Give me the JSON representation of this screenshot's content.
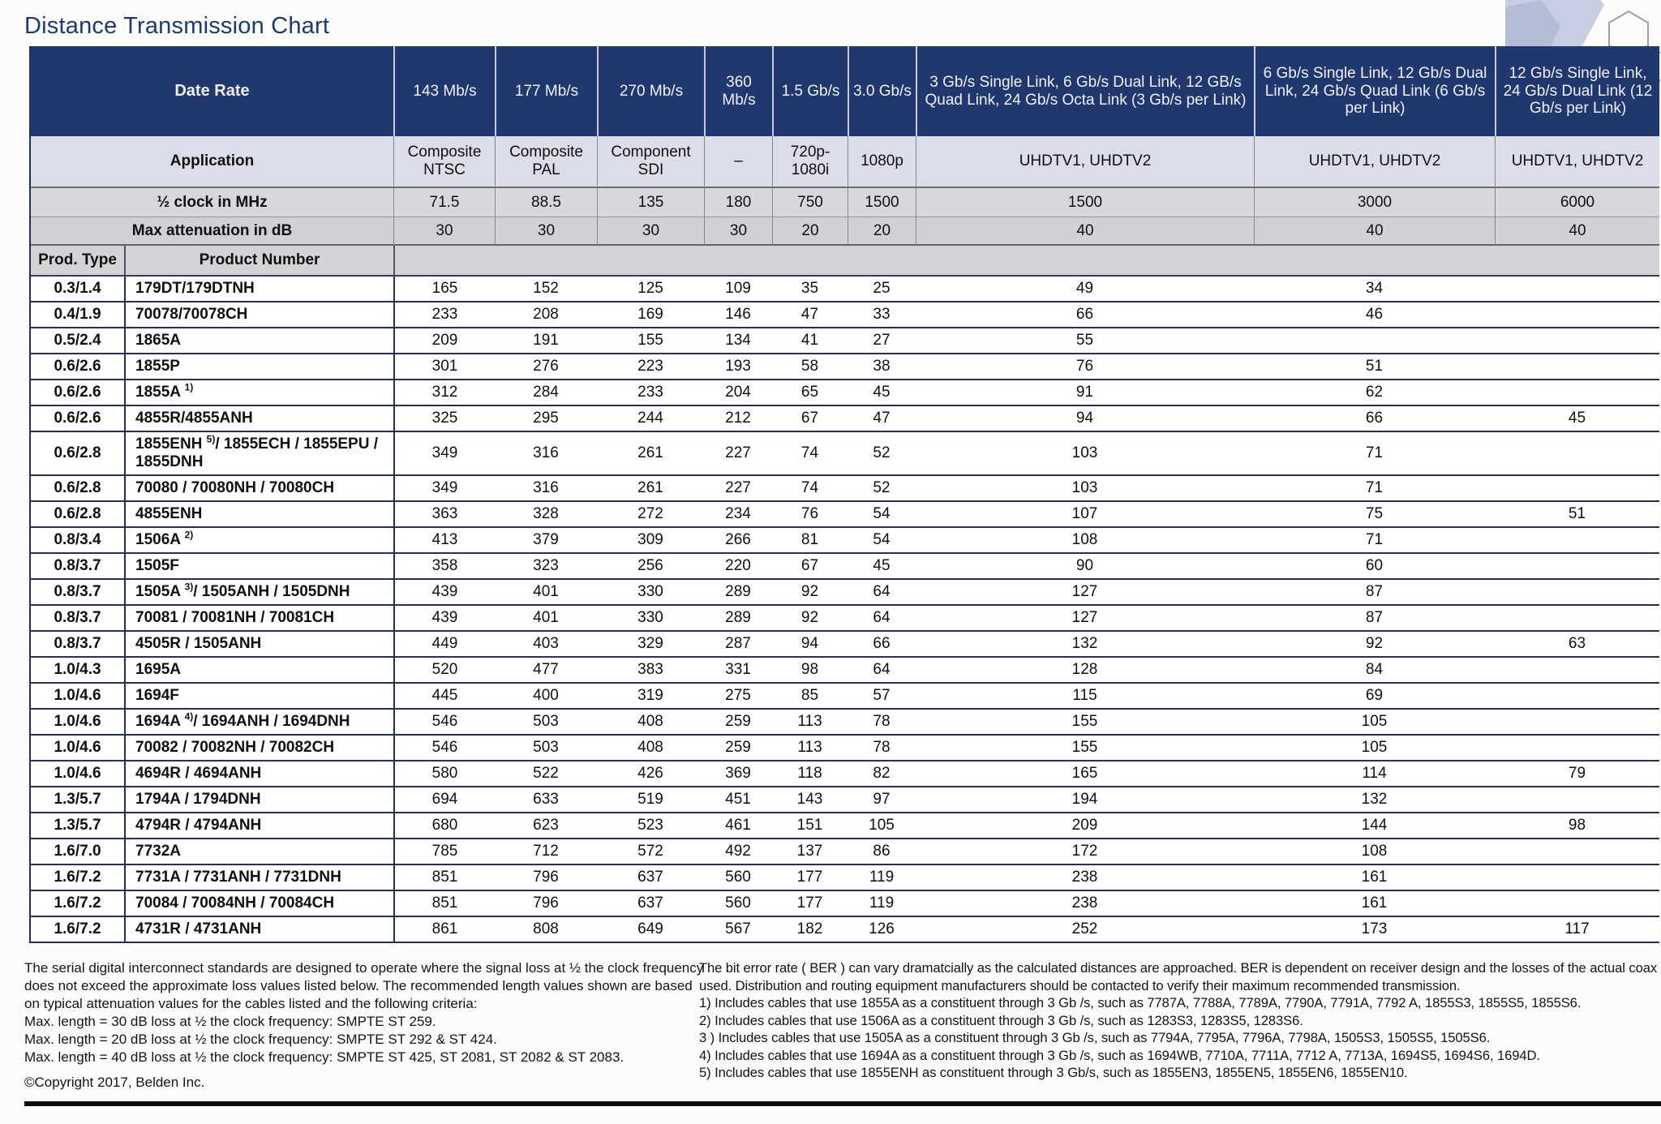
{
  "title": "Distance Transmission Chart",
  "colors": {
    "header_navy": "#21386e",
    "row_line_navy": "#1d3264",
    "application_row": "#dbdee9",
    "metric_row": "#d7d8dc"
  },
  "table": {
    "date_rate_label": "Date Rate",
    "application_label": "Application",
    "clock_label": "½ clock in MHz",
    "attenuation_label": "Max attenuation in dB",
    "prod_type_label": "Prod. Type",
    "product_number_label": "Product Number",
    "rate_columns": [
      "143 Mb/s",
      "177 Mb/s",
      "270 Mb/s",
      "360 Mb/s",
      "1.5 Gb/s",
      "3.0 Gb/s",
      "3 Gb/s Single Link, 6 Gb/s Dual Link, 12 GB/s Quad Link, 24 Gb/s Octa Link (3 Gb/s per Link)",
      "6 Gb/s Single Link, 12 Gb/s Dual Link, 24 Gb/s Quad Link (6 Gb/s per Link)",
      "12 Gb/s Single Link, 24 Gb/s Dual Link (12 Gb/s per Link)"
    ],
    "applications": [
      "Composite NTSC",
      "Composite PAL",
      "Component SDI",
      "–",
      "720p- 1080i",
      "1080p",
      "UHDTV1, UHDTV2",
      "UHDTV1, UHDTV2",
      "UHDTV1, UHDTV2"
    ],
    "clock_mhz": [
      "71.5",
      "88.5",
      "135",
      "180",
      "750",
      "1500",
      "1500",
      "3000",
      "6000"
    ],
    "max_attenuation_db": [
      "30",
      "30",
      "30",
      "30",
      "20",
      "20",
      "40",
      "40",
      "40"
    ],
    "rows": [
      {
        "prod_type": "0.3/1.4",
        "product": {
          "pre": "179DT/179DTNH",
          "sup": "",
          "post": ""
        },
        "values": [
          "165",
          "152",
          "125",
          "109",
          "35",
          "25",
          "49",
          "34",
          ""
        ]
      },
      {
        "prod_type": "0.4/1.9",
        "product": {
          "pre": "70078/70078CH",
          "sup": "",
          "post": ""
        },
        "values": [
          "233",
          "208",
          "169",
          "146",
          "47",
          "33",
          "66",
          "46",
          ""
        ]
      },
      {
        "prod_type": "0.5/2.4",
        "product": {
          "pre": "1865A",
          "sup": "",
          "post": ""
        },
        "values": [
          "209",
          "191",
          "155",
          "134",
          "41",
          "27",
          "55",
          "",
          ""
        ]
      },
      {
        "prod_type": "0.6/2.6",
        "product": {
          "pre": "1855P",
          "sup": "",
          "post": ""
        },
        "values": [
          "301",
          "276",
          "223",
          "193",
          "58",
          "38",
          "76",
          "51",
          ""
        ]
      },
      {
        "prod_type": "0.6/2.6",
        "product": {
          "pre": "1855A ",
          "sup": "1)",
          "post": ""
        },
        "values": [
          "312",
          "284",
          "233",
          "204",
          "65",
          "45",
          "91",
          "62",
          ""
        ]
      },
      {
        "prod_type": "0.6/2.6",
        "product": {
          "pre": "4855R/4855ANH",
          "sup": "",
          "post": ""
        },
        "values": [
          "325",
          "295",
          "244",
          "212",
          "67",
          "47",
          "94",
          "66",
          "45"
        ]
      },
      {
        "prod_type": "0.6/2.8",
        "product": {
          "pre": "1855ENH ",
          "sup": "5)",
          "post": "/ 1855ECH / 1855EPU / 1855DNH"
        },
        "values": [
          "349",
          "316",
          "261",
          "227",
          "74",
          "52",
          "103",
          "71",
          ""
        ]
      },
      {
        "prod_type": "0.6/2.8",
        "product": {
          "pre": "70080 / 70080NH / 70080CH",
          "sup": "",
          "post": ""
        },
        "values": [
          "349",
          "316",
          "261",
          "227",
          "74",
          "52",
          "103",
          "71",
          ""
        ]
      },
      {
        "prod_type": "0.6/2.8",
        "product": {
          "pre": "4855ENH",
          "sup": "",
          "post": ""
        },
        "values": [
          "363",
          "328",
          "272",
          "234",
          "76",
          "54",
          "107",
          "75",
          "51"
        ]
      },
      {
        "prod_type": "0.8/3.4",
        "product": {
          "pre": "1506A ",
          "sup": "2)",
          "post": ""
        },
        "values": [
          "413",
          "379",
          "309",
          "266",
          "81",
          "54",
          "108",
          "71",
          ""
        ]
      },
      {
        "prod_type": "0.8/3.7",
        "product": {
          "pre": "1505F",
          "sup": "",
          "post": ""
        },
        "values": [
          "358",
          "323",
          "256",
          "220",
          "67",
          "45",
          "90",
          "60",
          ""
        ]
      },
      {
        "prod_type": "0.8/3.7",
        "product": {
          "pre": "1505A ",
          "sup": "3)",
          "post": "/ 1505ANH / 1505DNH"
        },
        "values": [
          "439",
          "401",
          "330",
          "289",
          "92",
          "64",
          "127",
          "87",
          ""
        ]
      },
      {
        "prod_type": "0.8/3.7",
        "product": {
          "pre": "70081 / 70081NH / 70081CH",
          "sup": "",
          "post": ""
        },
        "values": [
          "439",
          "401",
          "330",
          "289",
          "92",
          "64",
          "127",
          "87",
          ""
        ]
      },
      {
        "prod_type": "0.8/3.7",
        "product": {
          "pre": "4505R / 1505ANH",
          "sup": "",
          "post": ""
        },
        "values": [
          "449",
          "403",
          "329",
          "287",
          "94",
          "66",
          "132",
          "92",
          "63"
        ]
      },
      {
        "prod_type": "1.0/4.3",
        "product": {
          "pre": "1695A",
          "sup": "",
          "post": ""
        },
        "values": [
          "520",
          "477",
          "383",
          "331",
          "98",
          "64",
          "128",
          "84",
          ""
        ]
      },
      {
        "prod_type": "1.0/4.6",
        "product": {
          "pre": "1694F",
          "sup": "",
          "post": ""
        },
        "values": [
          "445",
          "400",
          "319",
          "275",
          "85",
          "57",
          "115",
          "69",
          ""
        ]
      },
      {
        "prod_type": "1.0/4.6",
        "product": {
          "pre": "1694A ",
          "sup": "4)",
          "post": "/ 1694ANH / 1694DNH"
        },
        "values": [
          "546",
          "503",
          "408",
          "259",
          "113",
          "78",
          "155",
          "105",
          ""
        ]
      },
      {
        "prod_type": "1.0/4.6",
        "product": {
          "pre": "70082 / 70082NH / 70082CH",
          "sup": "",
          "post": ""
        },
        "values": [
          "546",
          "503",
          "408",
          "259",
          "113",
          "78",
          "155",
          "105",
          ""
        ]
      },
      {
        "prod_type": "1.0/4.6",
        "product": {
          "pre": "4694R / 4694ANH",
          "sup": "",
          "post": ""
        },
        "values": [
          "580",
          "522",
          "426",
          "369",
          "118",
          "82",
          "165",
          "114",
          "79"
        ]
      },
      {
        "prod_type": "1.3/5.7",
        "product": {
          "pre": "1794A / 1794DNH",
          "sup": "",
          "post": ""
        },
        "values": [
          "694",
          "633",
          "519",
          "451",
          "143",
          "97",
          "194",
          "132",
          ""
        ]
      },
      {
        "prod_type": "1.3/5.7",
        "product": {
          "pre": "4794R / 4794ANH",
          "sup": "",
          "post": ""
        },
        "values": [
          "680",
          "623",
          "523",
          "461",
          "151",
          "105",
          "209",
          "144",
          "98"
        ]
      },
      {
        "prod_type": "1.6/7.0",
        "product": {
          "pre": "7732A",
          "sup": "",
          "post": ""
        },
        "values": [
          "785",
          "712",
          "572",
          "492",
          "137",
          "86",
          "172",
          "108",
          ""
        ]
      },
      {
        "prod_type": "1.6/7.2",
        "product": {
          "pre": "7731A / 7731ANH / 7731DNH",
          "sup": "",
          "post": ""
        },
        "values": [
          "851",
          "796",
          "637",
          "560",
          "177",
          "119",
          "238",
          "161",
          ""
        ]
      },
      {
        "prod_type": "1.6/7.2",
        "product": {
          "pre": "70084 / 70084NH / 70084CH",
          "sup": "",
          "post": ""
        },
        "values": [
          "851",
          "796",
          "637",
          "560",
          "177",
          "119",
          "238",
          "161",
          ""
        ]
      },
      {
        "prod_type": "1.6/7.2",
        "product": {
          "pre": "4731R / 4731ANH",
          "sup": "",
          "post": ""
        },
        "values": [
          "861",
          "808",
          "649",
          "567",
          "182",
          "126",
          "252",
          "173",
          "117"
        ]
      }
    ]
  },
  "footer": {
    "left": {
      "paragraph": "The serial digital interconnect standards are designed to operate where the signal loss at ½ the clock frequency does not exceed the approximate loss values listed below. The recommended length values shown are based on typical attenuation values for the cables listed and the following criteria:",
      "criteria": [
        "Max. length = 30 dB loss at ½ the clock frequency: SMPTE ST 259.",
        "Max. length = 20 dB loss at ½ the clock frequency: SMPTE ST 292 & ST 424.",
        "Max. length = 40 dB loss at ½ the clock frequency: SMPTE ST 425, ST 2081, ST 2082 & ST 2083."
      ],
      "copyright": "©Copyright 2017, Belden Inc."
    },
    "right": {
      "paragraph": "The bit error rate ( BER ) can vary dramatcially as the calculated distances are approached. BER is dependent on receiver design and the losses of the actual coax used. Distribution and routing equipment manufacturers should be contacted to verify their maximum recommended transmission.",
      "notes": [
        "1) Includes cables that use 1855A as a constituent through 3 Gb /s, such as 7787A, 7788A, 7789A, 7790A, 7791A, 7792 A, 1855S3, 1855S5, 1855S6.",
        "2) Includes cables that use 1506A as a constituent through 3 Gb /s, such as 1283S3, 1283S5, 1283S6.",
        "3 ) Includes cables that use 1505A as a constituent through 3 Gb /s, such as 7794A, 7795A, 7796A, 7798A, 1505S3, 1505S5, 1505S6.",
        "4) Includes cables that use 1694A as a constituent through 3 Gb /s, such as 1694WB, 7710A, 7711A, 7712 A, 7713A, 1694S5, 1694S6, 1694D.",
        "5) Includes cables that use 1855ENH as constituent through 3 Gb/s, such as 1855EN3, 1855EN5, 1855EN6, 1855EN10."
      ]
    }
  }
}
